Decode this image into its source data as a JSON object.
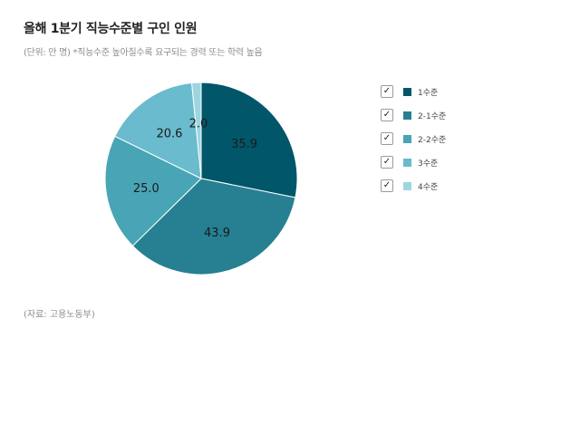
{
  "title": "올해 1분기 직능수준별 구인 인원",
  "subtitle": "(단위: 만 명) *직능수준 높아질수록 요구되는 경력 또는 학력 높음",
  "source": "(자료: 고용노동부)",
  "check_glyph": "✓",
  "chart_data": {
    "type": "pie",
    "title": "올해 1분기 직능수준별 구인 인원",
    "unit": "만 명",
    "categories": [
      "1수준",
      "2-1수준",
      "2-2수준",
      "3수준",
      "4수준"
    ],
    "values": [
      35.9,
      43.9,
      25.0,
      20.6,
      2.0
    ],
    "colors": [
      "#01566a",
      "#268092",
      "#48a5b6",
      "#69bbcd",
      "#9dd6e3"
    ],
    "start_angle": "12 o'clock, clockwise",
    "legend": "right",
    "legend_checked": [
      true,
      true,
      true,
      true,
      true
    ]
  }
}
